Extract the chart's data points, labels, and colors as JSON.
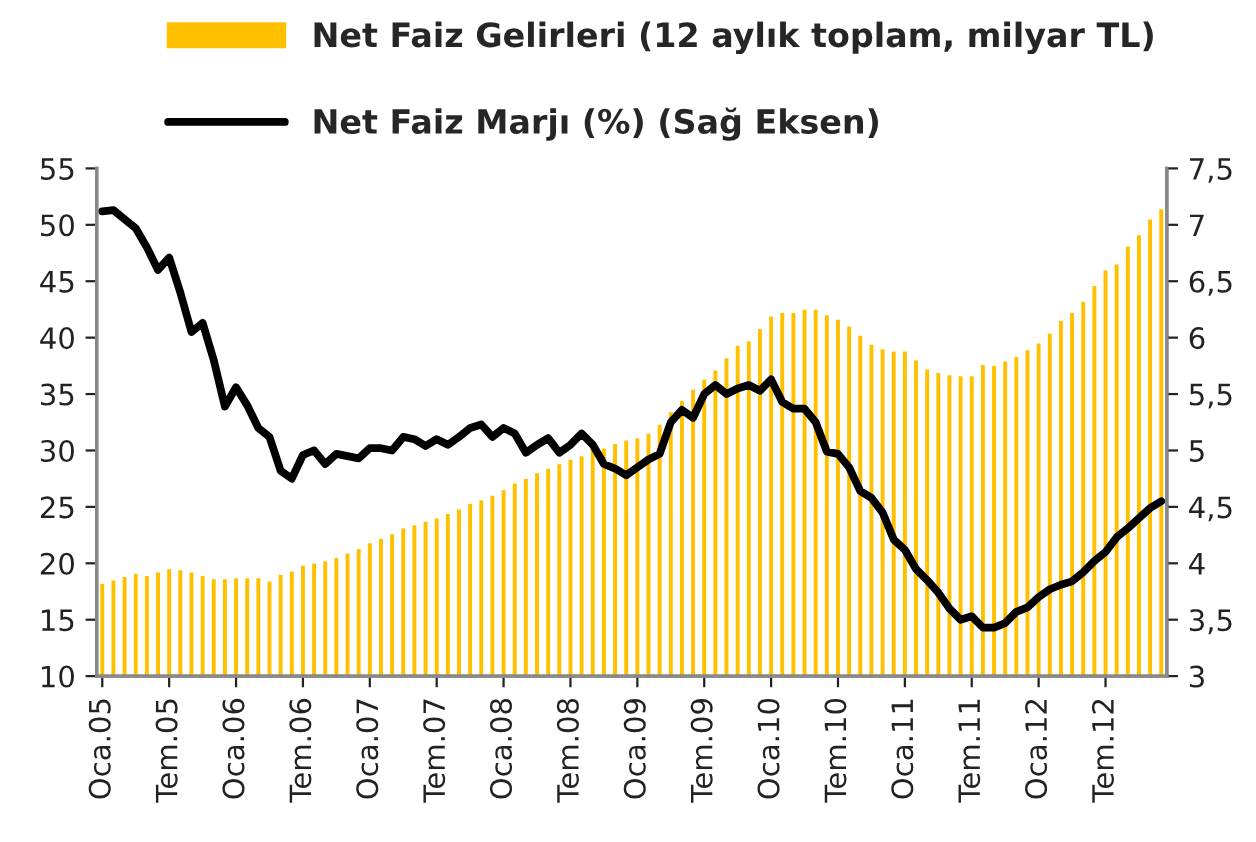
{
  "chart_data": {
    "type": "bar",
    "categories": [
      "Oca.05",
      null,
      null,
      null,
      null,
      null,
      "Tem.05",
      null,
      null,
      null,
      null,
      null,
      "Oca.06",
      null,
      null,
      null,
      null,
      null,
      "Tem.06",
      null,
      null,
      null,
      null,
      null,
      "Oca.07",
      null,
      null,
      null,
      null,
      null,
      "Tem.07",
      null,
      null,
      null,
      null,
      null,
      "Oca.08",
      null,
      null,
      null,
      null,
      null,
      "Tem.08",
      null,
      null,
      null,
      null,
      null,
      "Oca.09",
      null,
      null,
      null,
      null,
      null,
      "Tem.09",
      null,
      null,
      null,
      null,
      null,
      "Oca.10",
      null,
      null,
      null,
      null,
      null,
      "Tem.10",
      null,
      null,
      null,
      null,
      null,
      "Oca.11",
      null,
      null,
      null,
      null,
      null,
      "Tem.11",
      null,
      null,
      null,
      null,
      null,
      "Oca.12",
      null,
      null,
      null,
      null,
      null,
      "Tem.12",
      null,
      null,
      null,
      null,
      null
    ],
    "series": [
      {
        "name": "Net Faiz Gelirleri (12 aylık toplam, milyar TL)",
        "color": "#ffc000",
        "values": [
          18.3,
          18.6,
          18.9,
          19.2,
          19.0,
          19.3,
          19.6,
          19.5,
          19.3,
          19.0,
          18.7,
          18.7,
          18.8,
          18.8,
          18.8,
          18.5,
          19.1,
          19.4,
          19.9,
          20.1,
          20.3,
          20.6,
          21.0,
          21.4,
          21.9,
          22.3,
          22.7,
          23.2,
          23.5,
          23.8,
          24.1,
          24.5,
          24.9,
          25.4,
          25.7,
          26.1,
          26.6,
          27.2,
          27.6,
          28.1,
          28.5,
          28.9,
          29.3,
          29.6,
          30.2,
          30.3,
          30.7,
          31.0,
          31.2,
          31.6,
          32.4,
          33.5,
          34.5,
          35.5,
          36.4,
          37.2,
          38.3,
          39.4,
          39.8,
          40.9,
          42.0,
          42.3,
          42.3,
          42.6,
          42.6,
          42.1,
          41.7,
          41.1,
          40.3,
          39.5,
          39.1,
          38.9,
          38.9,
          38.1,
          37.3,
          37.0,
          36.8,
          36.7,
          36.7,
          37.7,
          37.6,
          38.0,
          38.4,
          39.0,
          39.6,
          40.5,
          41.6,
          42.3,
          43.3,
          44.7,
          46.1,
          46.6,
          48.2,
          49.2,
          50.6,
          51.5
        ]
      },
      {
        "name": "Net Faiz Marjı (%) (Sağ Eksen)",
        "type": "line",
        "axis": "y2",
        "color": "#000000",
        "values": [
          7.12,
          7.13,
          7.05,
          6.97,
          6.8,
          6.6,
          6.71,
          6.4,
          6.05,
          6.13,
          5.8,
          5.39,
          5.56,
          5.4,
          5.2,
          5.12,
          4.82,
          4.75,
          4.96,
          5.0,
          4.88,
          4.97,
          4.95,
          4.93,
          5.02,
          5.02,
          5.0,
          5.12,
          5.1,
          5.04,
          5.1,
          5.05,
          5.12,
          5.2,
          5.23,
          5.12,
          5.2,
          5.15,
          4.98,
          5.05,
          5.11,
          4.98,
          5.05,
          5.15,
          5.05,
          4.88,
          4.84,
          4.78,
          4.85,
          4.92,
          4.97,
          5.25,
          5.36,
          5.29,
          5.5,
          5.58,
          5.5,
          5.55,
          5.58,
          5.53,
          5.63,
          5.43,
          5.37,
          5.37,
          5.25,
          4.99,
          4.97,
          4.85,
          4.64,
          4.58,
          4.45,
          4.21,
          4.12,
          3.95,
          3.85,
          3.74,
          3.6,
          3.5,
          3.53,
          3.43,
          3.43,
          3.47,
          3.57,
          3.61,
          3.7,
          3.77,
          3.81,
          3.84,
          3.92,
          4.02,
          4.1,
          4.23,
          4.31,
          4.4,
          4.49,
          4.55
        ]
      }
    ],
    "ylim": [
      10,
      55
    ],
    "yticks": [
      10,
      15,
      20,
      25,
      30,
      35,
      40,
      45,
      50,
      55
    ],
    "y2lim": [
      3,
      7.5
    ],
    "y2ticks": [
      3,
      {
        "value": 3.5,
        "label": "3,5"
      },
      4,
      {
        "value": 4.5,
        "label": "4,5"
      },
      5,
      {
        "value": 5.5,
        "label": "5,5"
      },
      6,
      {
        "value": 6.5,
        "label": "6,5"
      },
      7,
      {
        "value": 7.5,
        "label": "7,5"
      }
    ],
    "grid": false,
    "legend": "top",
    "marker": "none",
    "line_style": "solid"
  }
}
